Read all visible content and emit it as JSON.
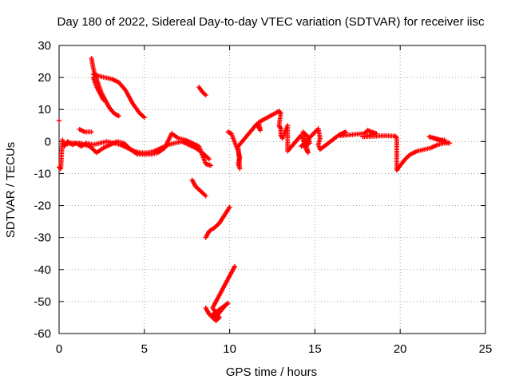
{
  "chart_data": {
    "type": "scatter",
    "title": "Day 180 of 2022, Sidereal Day-to-day VTEC variation (SDTVAR) for receiver iisc",
    "xlabel": "GPS time / hours",
    "ylabel": "SDTVAR / TECUs",
    "xlim": [
      0,
      25
    ],
    "ylim": [
      -60,
      30
    ],
    "xticks": [
      0,
      5,
      10,
      15,
      20,
      25
    ],
    "yticks": [
      -60,
      -50,
      -40,
      -30,
      -20,
      -10,
      0,
      10,
      20,
      30
    ],
    "grid": true,
    "marker": "+",
    "color": "#ff0000",
    "series": [
      {
        "name": "SDTVAR",
        "points": [
          [
            0.0,
            6.5
          ],
          [
            0.0,
            -8.0
          ],
          [
            0.1,
            -8.5
          ],
          [
            0.2,
            0.5
          ],
          [
            0.3,
            -1.5
          ],
          [
            0.5,
            0.0
          ],
          [
            0.8,
            -1.0
          ],
          [
            1.0,
            -0.5
          ],
          [
            1.3,
            -1.5
          ],
          [
            1.6,
            -0.5
          ],
          [
            2.0,
            -1.0
          ],
          [
            2.4,
            -0.5
          ],
          [
            2.8,
            0.0
          ],
          [
            3.2,
            -0.5
          ],
          [
            3.6,
            -1.0
          ],
          [
            4.0,
            -2.0
          ],
          [
            4.4,
            -3.0
          ],
          [
            4.8,
            -3.5
          ],
          [
            5.2,
            -3.5
          ],
          [
            5.6,
            -3.0
          ],
          [
            6.0,
            -2.0
          ],
          [
            6.4,
            -1.0
          ],
          [
            6.8,
            -0.5
          ],
          [
            7.2,
            0.0
          ],
          [
            7.6,
            -1.0
          ],
          [
            8.0,
            -2.0
          ],
          [
            8.4,
            -3.5
          ],
          [
            8.8,
            -5.5
          ],
          [
            0.3,
            -1.0
          ],
          [
            0.7,
            -0.5
          ],
          [
            1.2,
            -0.5
          ],
          [
            1.8,
            -1.5
          ],
          [
            2.2,
            -3.5
          ],
          [
            2.6,
            -2.0
          ],
          [
            3.0,
            -1.0
          ],
          [
            3.4,
            0.0
          ],
          [
            3.8,
            -0.5
          ],
          [
            4.2,
            -2.5
          ],
          [
            4.6,
            -4.0
          ],
          [
            5.0,
            -4.0
          ],
          [
            5.4,
            -4.0
          ],
          [
            5.8,
            -3.5
          ],
          [
            6.2,
            -2.0
          ],
          [
            6.6,
            2.5
          ],
          [
            7.0,
            1.0
          ],
          [
            7.4,
            0.5
          ],
          [
            7.8,
            -0.5
          ],
          [
            8.2,
            -1.5
          ],
          [
            8.6,
            -7.0
          ],
          [
            8.9,
            -7.5
          ],
          [
            1.2,
            3.8
          ],
          [
            1.5,
            3.0
          ],
          [
            1.9,
            3.0
          ],
          [
            1.9,
            26.0
          ],
          [
            2.0,
            23.0
          ],
          [
            2.1,
            21.0
          ],
          [
            2.3,
            18.0
          ],
          [
            2.5,
            15.0
          ],
          [
            2.7,
            13.0
          ],
          [
            2.9,
            11.0
          ],
          [
            3.1,
            9.5
          ],
          [
            3.3,
            8.5
          ],
          [
            3.5,
            8.0
          ],
          [
            2.0,
            21.0
          ],
          [
            2.3,
            20.5
          ],
          [
            2.7,
            20.0
          ],
          [
            3.1,
            19.5
          ],
          [
            3.5,
            18.5
          ],
          [
            3.9,
            16.0
          ],
          [
            4.3,
            12.0
          ],
          [
            4.7,
            9.0
          ],
          [
            5.0,
            7.5
          ],
          [
            2.0,
            20.0
          ],
          [
            2.2,
            17.0
          ],
          [
            2.6,
            13.0
          ],
          [
            8.2,
            17.0
          ],
          [
            8.4,
            15.5
          ],
          [
            8.6,
            14.5
          ],
          [
            7.8,
            -12.0
          ],
          [
            8.0,
            -14.0
          ],
          [
            8.3,
            -15.5
          ],
          [
            8.6,
            -17.0
          ],
          [
            8.6,
            -30.0
          ],
          [
            8.8,
            -28.0
          ],
          [
            9.1,
            -27.0
          ],
          [
            9.4,
            -25.5
          ],
          [
            9.7,
            -23.0
          ],
          [
            10.0,
            -20.5
          ],
          [
            8.6,
            -52.0
          ],
          [
            8.8,
            -54.0
          ],
          [
            9.1,
            -55.0
          ],
          [
            9.4,
            -53.5
          ],
          [
            9.7,
            -51.5
          ],
          [
            9.9,
            -50.5
          ],
          [
            8.9,
            -54.5
          ],
          [
            9.2,
            -56.0
          ],
          [
            9.4,
            -55.0
          ],
          [
            9.0,
            -52.0
          ],
          [
            9.3,
            -49.0
          ],
          [
            9.6,
            -46.0
          ],
          [
            9.9,
            -43.0
          ],
          [
            10.1,
            -41.0
          ],
          [
            10.3,
            -39.0
          ],
          [
            9.9,
            3.0
          ],
          [
            10.1,
            2.5
          ],
          [
            10.5,
            -3.0
          ],
          [
            10.6,
            -5.0
          ],
          [
            10.5,
            -7.0
          ],
          [
            10.6,
            -8.5
          ],
          [
            10.5,
            -1.5
          ],
          [
            11.6,
            5.5
          ],
          [
            11.7,
            4.5
          ],
          [
            11.8,
            3.5
          ],
          [
            11.7,
            6.0
          ],
          [
            12.9,
            9.5
          ],
          [
            13.0,
            8.8
          ],
          [
            12.9,
            5.0
          ],
          [
            13.0,
            4.0
          ],
          [
            13.0,
            2.0
          ],
          [
            13.1,
            1.0
          ],
          [
            13.4,
            5.0
          ],
          [
            13.4,
            -3.0
          ],
          [
            14.2,
            2.0
          ],
          [
            14.3,
            0.5
          ],
          [
            14.4,
            -1.0
          ],
          [
            14.5,
            -2.5
          ],
          [
            14.6,
            -3.5
          ],
          [
            14.3,
            3.0
          ],
          [
            14.6,
            1.5
          ],
          [
            14.7,
            -0.5
          ],
          [
            14.2,
            -1.5
          ],
          [
            15.2,
            4.0
          ],
          [
            15.3,
            1.0
          ],
          [
            15.2,
            -1.0
          ],
          [
            15.3,
            -2.5
          ],
          [
            16.4,
            2.0
          ],
          [
            16.6,
            2.5
          ],
          [
            16.8,
            3.0
          ],
          [
            16.5,
            1.8
          ],
          [
            17.9,
            2.5
          ],
          [
            18.1,
            3.5
          ],
          [
            18.3,
            3.0
          ],
          [
            18.6,
            2.5
          ],
          [
            17.8,
            1.5
          ],
          [
            19.1,
            1.8
          ],
          [
            19.7,
            1.7
          ],
          [
            19.8,
            1.2
          ],
          [
            19.8,
            -9.0
          ],
          [
            20.0,
            -7.5
          ],
          [
            20.3,
            -5.5
          ],
          [
            20.6,
            -4.0
          ],
          [
            21.0,
            -3.0
          ],
          [
            21.4,
            -2.5
          ],
          [
            21.8,
            -2.0
          ],
          [
            22.2,
            -1.0
          ],
          [
            22.6,
            -0.5
          ],
          [
            22.9,
            -0.5
          ],
          [
            21.7,
            1.5
          ],
          [
            22.3,
            0.5
          ],
          [
            22.6,
            0.5
          ]
        ]
      }
    ]
  }
}
